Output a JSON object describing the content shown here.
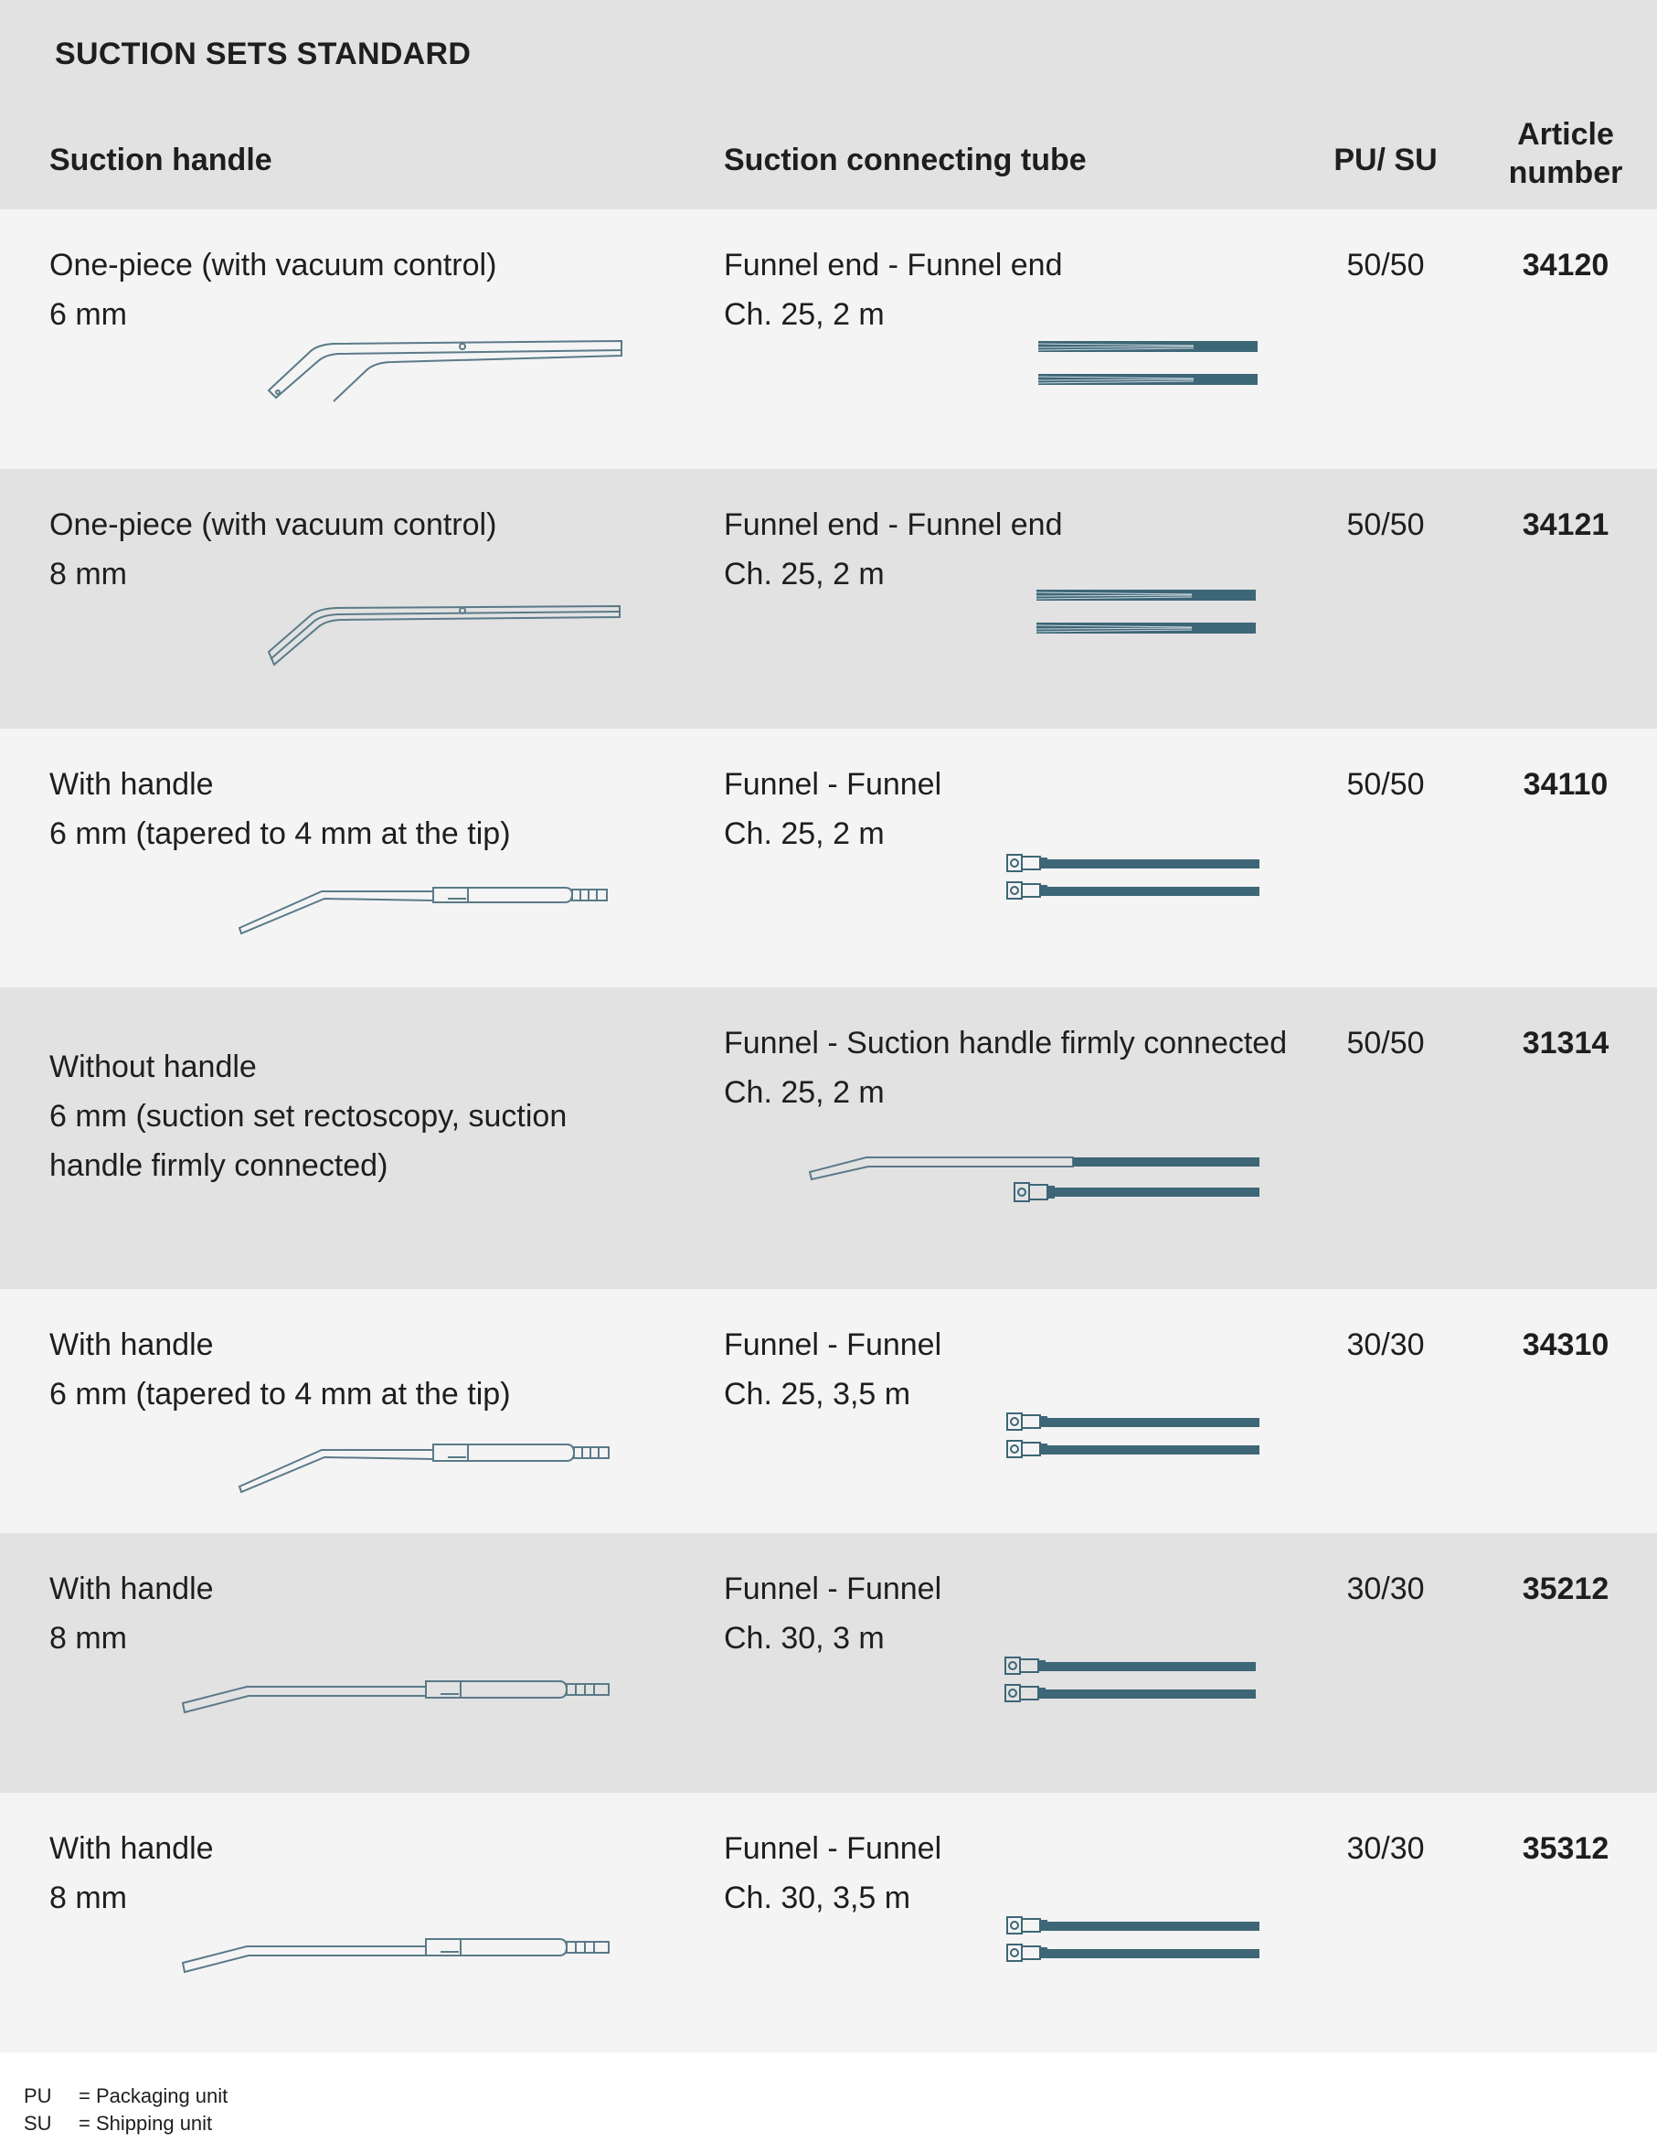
{
  "title": "SUCTION SETS STANDARD",
  "columns": {
    "handle": "Suction handle",
    "tube": "Suction connecting tube",
    "pu_su": "PU/ SU",
    "article_line1": "Article",
    "article_line2": "number"
  },
  "rows": [
    {
      "handle_lines": [
        "One-piece (with vacuum control)",
        "6 mm"
      ],
      "tube_lines": [
        "Funnel end - Funnel end",
        "Ch. 25, 2 m"
      ],
      "pu_su": "50/50",
      "article": "34120",
      "handle_icon": "one-piece-handle-icon",
      "tube_icon": "funnel-end-tube-icon"
    },
    {
      "handle_lines": [
        "One-piece (with vacuum control)",
        "8 mm"
      ],
      "tube_lines": [
        "Funnel end - Funnel end",
        "Ch. 25, 2 m"
      ],
      "pu_su": "50/50",
      "article": "34121",
      "handle_icon": "one-piece-handle-icon",
      "tube_icon": "funnel-end-tube-icon"
    },
    {
      "handle_lines": [
        "With handle",
        "6 mm (tapered to 4 mm at the tip)"
      ],
      "tube_lines": [
        "Funnel - Funnel",
        "Ch. 25, 2 m"
      ],
      "pu_su": "50/50",
      "article": "34110",
      "handle_icon": "suction-handle-icon",
      "tube_icon": "funnel-tube-icon"
    },
    {
      "handle_lines": [
        "Without handle",
        "6 mm (suction set rectoscopy, suction",
        "handle firmly connected)"
      ],
      "tube_lines": [
        "Funnel - Suction handle firmly connected",
        "Ch. 25, 2 m"
      ],
      "pu_su": "50/50",
      "article": "31314",
      "handle_icon": "",
      "tube_icon": "connected-tube-icon"
    },
    {
      "handle_lines": [
        "With handle",
        "6 mm (tapered to 4 mm at the tip)"
      ],
      "tube_lines": [
        "Funnel - Funnel",
        "Ch. 25, 3,5 m"
      ],
      "pu_su": "30/30",
      "article": "34310",
      "handle_icon": "suction-handle-icon",
      "tube_icon": "funnel-tube-icon"
    },
    {
      "handle_lines": [
        "With handle",
        "8 mm"
      ],
      "tube_lines": [
        "Funnel - Funnel",
        "Ch. 30, 3 m"
      ],
      "pu_su": "30/30",
      "article": "35212",
      "handle_icon": "suction-handle-icon",
      "tube_icon": "funnel-tube-icon"
    },
    {
      "handle_lines": [
        "With handle",
        "8 mm"
      ],
      "tube_lines": [
        "Funnel - Funnel",
        "Ch. 30, 3,5 m"
      ],
      "pu_su": "30/30",
      "article": "35312",
      "handle_icon": "suction-handle-icon",
      "tube_icon": "funnel-tube-icon"
    }
  ],
  "legend": [
    {
      "abbr": "PU",
      "desc": "= Packaging unit"
    },
    {
      "abbr": "SU",
      "desc": "= Shipping unit"
    }
  ],
  "colors": {
    "header_bg": "#e2e2e2",
    "row_light": "#f4f4f4",
    "row_dark": "#e2e2e2",
    "tube": "#3d6677",
    "outline": "#5a7a88"
  }
}
